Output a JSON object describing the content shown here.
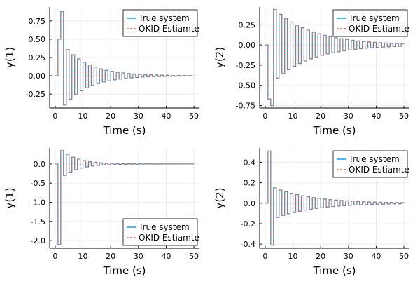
{
  "colors": {
    "true_system": "#009AF9",
    "okid": "#E26F46",
    "grid": "#e8e8e8",
    "axis": "#000000"
  },
  "chart_data": [
    {
      "type": "line",
      "step": true,
      "xlabel": "Time (s)",
      "ylabel": "y(1)",
      "xlim": [
        -2,
        52
      ],
      "ylim": [
        -0.44,
        0.94
      ],
      "xticks": [
        0,
        10,
        20,
        30,
        40,
        50
      ],
      "yticks": [
        -0.25,
        0,
        0.25,
        0.5,
        0.75
      ],
      "ytick_labels": [
        "-0.25",
        "0.00",
        "0.25",
        "0.50",
        "0.75"
      ],
      "grid": true,
      "legend": "top-right",
      "response": {
        "x0": 1,
        "y0": 0.5,
        "peak_x": 2,
        "peak_y": 0.88,
        "first_neg_y": -0.4,
        "ratio": -0.895
      },
      "series": [
        {
          "name": "True system",
          "style": "solid",
          "color_key": "true_system"
        },
        {
          "name": "OKID Estiamte",
          "style": "dashed",
          "color_key": "okid"
        }
      ]
    },
    {
      "type": "line",
      "step": true,
      "xlabel": "Time (s)",
      "ylabel": "y(2)",
      "xlim": [
        -2,
        52
      ],
      "ylim": [
        -0.78,
        0.47
      ],
      "xticks": [
        0,
        10,
        20,
        30,
        40,
        50
      ],
      "yticks": [
        -0.75,
        -0.5,
        -0.25,
        0,
        0.25
      ],
      "ytick_labels": [
        "-0.75",
        "-0.50",
        "-0.25",
        "0.00",
        "0.25"
      ],
      "grid": true,
      "legend": "top-right",
      "response": {
        "x0": 1,
        "y0": -0.67,
        "peak_x": 2,
        "peak_y": -0.75,
        "first_neg_y": 0.44,
        "ratio": -0.93
      },
      "series": [
        {
          "name": "True system",
          "style": "solid",
          "color_key": "true_system"
        },
        {
          "name": "OKID Estiamte",
          "style": "dashed",
          "color_key": "okid"
        }
      ]
    },
    {
      "type": "line",
      "step": true,
      "xlabel": "Time (s)",
      "ylabel": "y(1)",
      "xlim": [
        -2,
        52
      ],
      "ylim": [
        -2.2,
        0.42
      ],
      "xticks": [
        0,
        10,
        20,
        30,
        40,
        50
      ],
      "yticks": [
        -2,
        -1.5,
        -1,
        -0.5,
        0
      ],
      "ytick_labels": [
        "-2.0",
        "-1.5",
        "-1.0",
        "-0.5",
        "0.0"
      ],
      "grid": true,
      "legend": "bottom-right",
      "response": {
        "x0": 1,
        "y0": -2.1,
        "peak_x": 2,
        "peak_y": 0.35,
        "first_neg_y": -0.3,
        "ratio": -0.84
      },
      "series": [
        {
          "name": "True system",
          "style": "solid",
          "color_key": "true_system"
        },
        {
          "name": "OKID Estiamte",
          "style": "dashed",
          "color_key": "okid"
        }
      ]
    },
    {
      "type": "line",
      "step": true,
      "xlabel": "Time (s)",
      "ylabel": "y(2)",
      "xlim": [
        -2,
        52
      ],
      "ylim": [
        -0.44,
        0.54
      ],
      "xticks": [
        0,
        10,
        20,
        30,
        40,
        50
      ],
      "yticks": [
        -0.4,
        -0.2,
        0,
        0.2,
        0.4
      ],
      "ytick_labels": [
        "-0.4",
        "-0.2",
        "0.0",
        "0.2",
        "0.4"
      ],
      "grid": true,
      "legend": "top-right",
      "response": {
        "x0": 1,
        "y0": 0.51,
        "peak_x": 2,
        "peak_y": -0.41,
        "first_neg_y": 0.15,
        "ratio": -0.93
      },
      "series": [
        {
          "name": "True system",
          "style": "solid",
          "color_key": "true_system"
        },
        {
          "name": "OKID Estiamte",
          "style": "dashed",
          "color_key": "okid"
        }
      ]
    }
  ]
}
